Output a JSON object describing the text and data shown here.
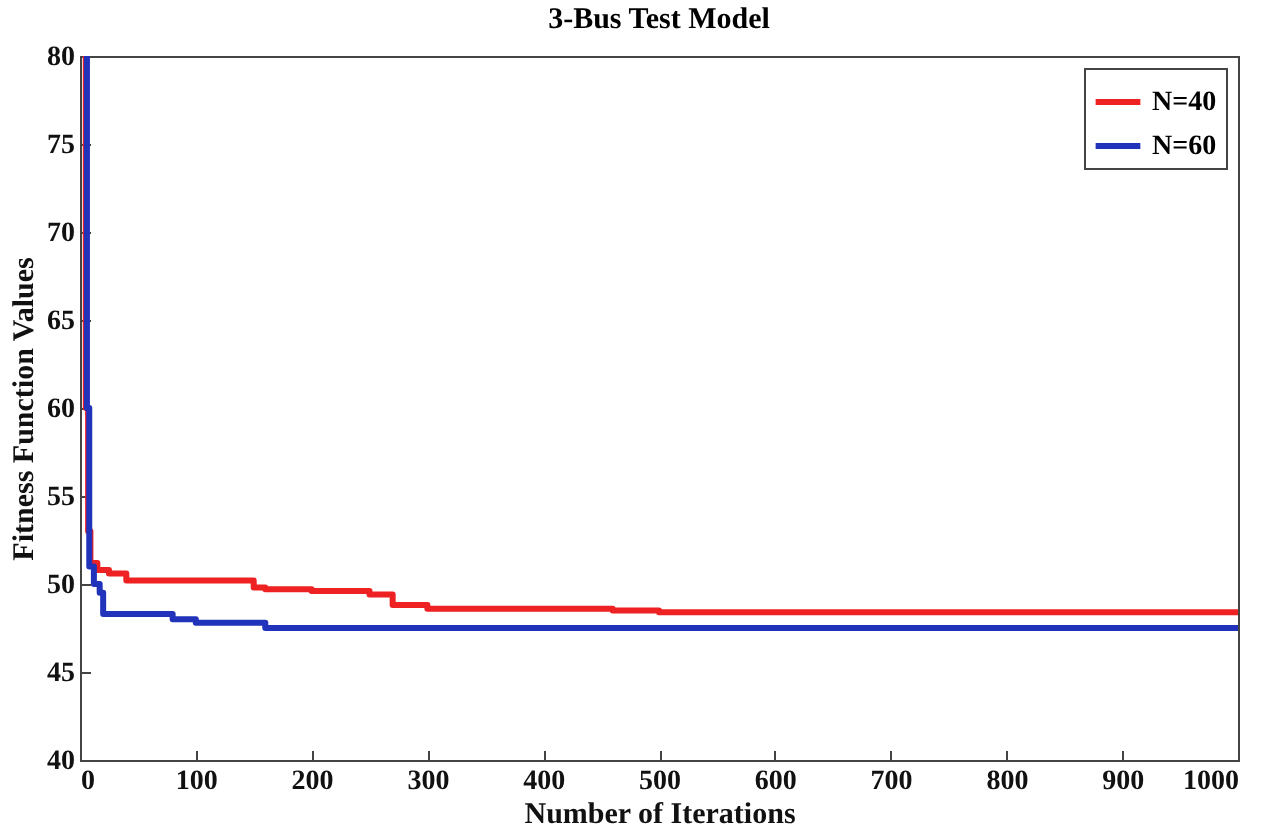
{
  "chart_data": {
    "type": "step",
    "title": "3-Bus Test Model",
    "xlabel": "Number of Iterations",
    "ylabel": "Fitness Function Values",
    "xlim": [
      0,
      1000
    ],
    "ylim": [
      40,
      80
    ],
    "xticks": [
      0,
      100,
      200,
      300,
      400,
      500,
      600,
      700,
      800,
      900,
      1000
    ],
    "yticks": [
      40,
      45,
      50,
      55,
      60,
      65,
      70,
      75,
      80
    ],
    "legend": "top right",
    "grid": false,
    "line_style": "solid",
    "series": [
      {
        "name": "N=40",
        "color": "#ee2222",
        "x": [
          3,
          5,
          7,
          9,
          15,
          25,
          40,
          150,
          160,
          200,
          250,
          270,
          300,
          350,
          460,
          500,
          1000
        ],
        "values": [
          80,
          60,
          53,
          51.2,
          50.8,
          50.6,
          50.2,
          49.8,
          49.7,
          49.6,
          49.4,
          48.8,
          48.6,
          48.6,
          48.5,
          48.4,
          48.4
        ]
      },
      {
        "name": "N=60",
        "color": "#2233bb",
        "x": [
          4,
          6,
          8,
          12,
          17,
          20,
          80,
          100,
          160,
          1000
        ],
        "values": [
          80,
          60,
          51,
          50,
          49.5,
          48.3,
          48,
          47.8,
          47.5,
          47.5
        ]
      }
    ]
  }
}
